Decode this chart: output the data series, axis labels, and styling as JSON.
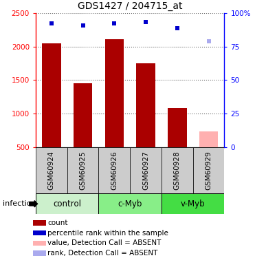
{
  "title": "GDS1427 / 204715_at",
  "samples": [
    "GSM60924",
    "GSM60925",
    "GSM60926",
    "GSM60927",
    "GSM60928",
    "GSM60929"
  ],
  "bar_values": [
    2050,
    1450,
    2110,
    1750,
    1080,
    null
  ],
  "absent_bar_value": 730,
  "absent_bar_color": "#ffb0b0",
  "bar_color": "#aa0000",
  "rank_values": [
    2340,
    2310,
    2340,
    2360,
    2270,
    null
  ],
  "absent_rank_value": 2080,
  "rank_color": "#0000cc",
  "absent_rank_color": "#aaaaee",
  "bar_bottom": 500,
  "ylim_left": [
    500,
    2500
  ],
  "ylim_right": [
    0,
    100
  ],
  "yticks_left": [
    500,
    1000,
    1500,
    2000,
    2500
  ],
  "yticks_right": [
    0,
    25,
    50,
    75,
    100
  ],
  "groups": [
    {
      "label": "control",
      "start": 0,
      "end": 2,
      "color": "#ccf0cc"
    },
    {
      "label": "c-Myb",
      "start": 2,
      "end": 4,
      "color": "#88ee88"
    },
    {
      "label": "v-Myb",
      "start": 4,
      "end": 6,
      "color": "#44dd44"
    }
  ],
  "sample_bg_color": "#cccccc",
  "infection_label": "infection",
  "legend_items": [
    {
      "color": "#aa0000",
      "label": "count"
    },
    {
      "color": "#0000cc",
      "label": "percentile rank within the sample"
    },
    {
      "color": "#ffb0b0",
      "label": "value, Detection Call = ABSENT"
    },
    {
      "color": "#aaaaee",
      "label": "rank, Detection Call = ABSENT"
    }
  ],
  "title_fontsize": 10,
  "tick_fontsize": 7.5,
  "label_fontsize": 8,
  "group_label_fontsize": 8.5,
  "legend_fontsize": 7.5
}
